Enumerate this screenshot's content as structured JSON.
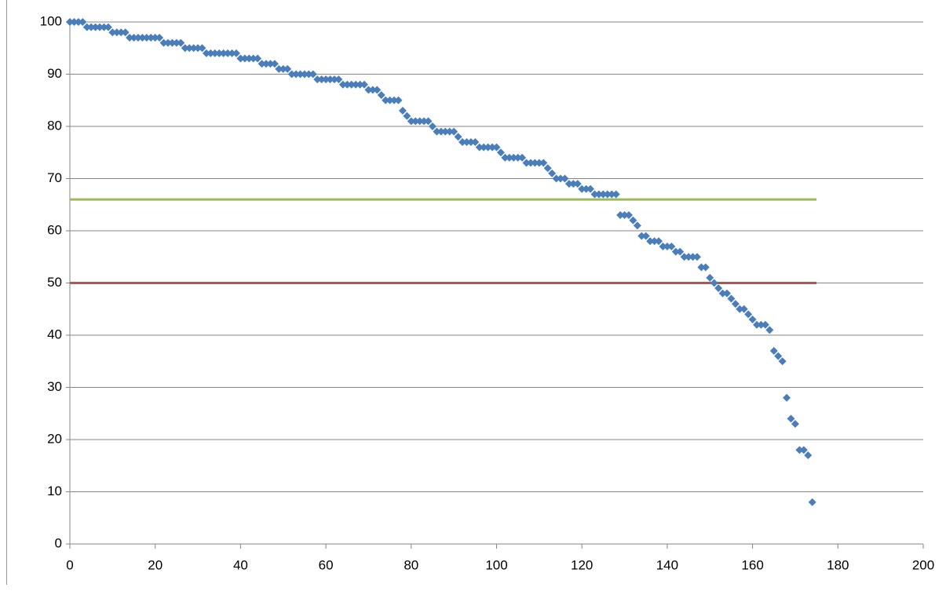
{
  "chart_data": {
    "type": "scatter",
    "xlim": [
      0,
      200
    ],
    "xticks": [
      0,
      20,
      40,
      60,
      80,
      100,
      120,
      140,
      160,
      180,
      200
    ],
    "ylim": [
      0,
      100
    ],
    "yticks": [
      0,
      10,
      20,
      30,
      40,
      50,
      60,
      70,
      80,
      90,
      100
    ],
    "grid": true,
    "series": [
      {
        "color": "#4a7ebb",
        "style": "markers",
        "x": [
          0,
          1,
          2,
          3,
          4,
          5,
          6,
          7,
          8,
          9,
          10,
          11,
          12,
          13,
          14,
          15,
          16,
          17,
          18,
          19,
          20,
          21,
          22,
          23,
          24,
          25,
          26,
          27,
          28,
          29,
          30,
          31,
          32,
          33,
          34,
          35,
          36,
          37,
          38,
          39,
          40,
          41,
          42,
          43,
          44,
          45,
          46,
          47,
          48,
          49,
          50,
          51,
          52,
          53,
          54,
          55,
          56,
          57,
          58,
          59,
          60,
          61,
          62,
          63,
          64,
          65,
          66,
          67,
          68,
          69,
          70,
          71,
          72,
          73,
          74,
          75,
          76,
          77,
          78,
          79,
          80,
          81,
          82,
          83,
          84,
          85,
          86,
          87,
          88,
          89,
          90,
          91,
          92,
          93,
          94,
          95,
          96,
          97,
          98,
          99,
          100,
          101,
          102,
          103,
          104,
          105,
          106,
          107,
          108,
          109,
          110,
          111,
          112,
          113,
          114,
          115,
          116,
          117,
          118,
          119,
          120,
          121,
          122,
          123,
          124,
          125,
          126,
          127,
          128,
          129,
          130,
          131,
          132,
          133,
          134,
          135,
          136,
          137,
          138,
          139,
          140,
          141,
          142,
          143,
          144,
          145,
          146,
          147,
          148,
          149,
          150,
          151,
          152,
          153,
          154,
          155,
          156,
          157,
          158,
          159,
          160,
          161,
          162,
          163,
          164,
          165,
          166,
          167,
          168,
          169,
          170,
          171,
          172,
          173,
          174
        ],
        "values": [
          100,
          100,
          100,
          100,
          99,
          99,
          99,
          99,
          99,
          99,
          98,
          98,
          98,
          98,
          97,
          97,
          97,
          97,
          97,
          97,
          97,
          97,
          96,
          96,
          96,
          96,
          96,
          95,
          95,
          95,
          95,
          95,
          94,
          94,
          94,
          94,
          94,
          94,
          94,
          94,
          93,
          93,
          93,
          93,
          93,
          92,
          92,
          92,
          92,
          91,
          91,
          91,
          90,
          90,
          90,
          90,
          90,
          90,
          89,
          89,
          89,
          89,
          89,
          89,
          88,
          88,
          88,
          88,
          88,
          88,
          87,
          87,
          87,
          86,
          85,
          85,
          85,
          85,
          83,
          82,
          81,
          81,
          81,
          81,
          81,
          80,
          79,
          79,
          79,
          79,
          79,
          78,
          77,
          77,
          77,
          77,
          76,
          76,
          76,
          76,
          76,
          75,
          74,
          74,
          74,
          74,
          74,
          73,
          73,
          73,
          73,
          73,
          72,
          71,
          70,
          70,
          70,
          69,
          69,
          69,
          68,
          68,
          68,
          67,
          67,
          67,
          67,
          67,
          67,
          63,
          63,
          63,
          62,
          61,
          59,
          59,
          58,
          58,
          58,
          57,
          57,
          57,
          56,
          56,
          55,
          55,
          55,
          55,
          53,
          53,
          51,
          50,
          49,
          48,
          48,
          47,
          46,
          45,
          45,
          44,
          43,
          42,
          42,
          42,
          41,
          37,
          36,
          35,
          28,
          24,
          23,
          18,
          18,
          17,
          8
        ]
      },
      {
        "color": "#9bbb59",
        "style": "line",
        "x": [
          0,
          175
        ],
        "values": [
          66,
          66
        ]
      },
      {
        "color": "#c0504d",
        "style": "line",
        "x": [
          0,
          175
        ],
        "values": [
          50,
          50
        ]
      }
    ]
  }
}
